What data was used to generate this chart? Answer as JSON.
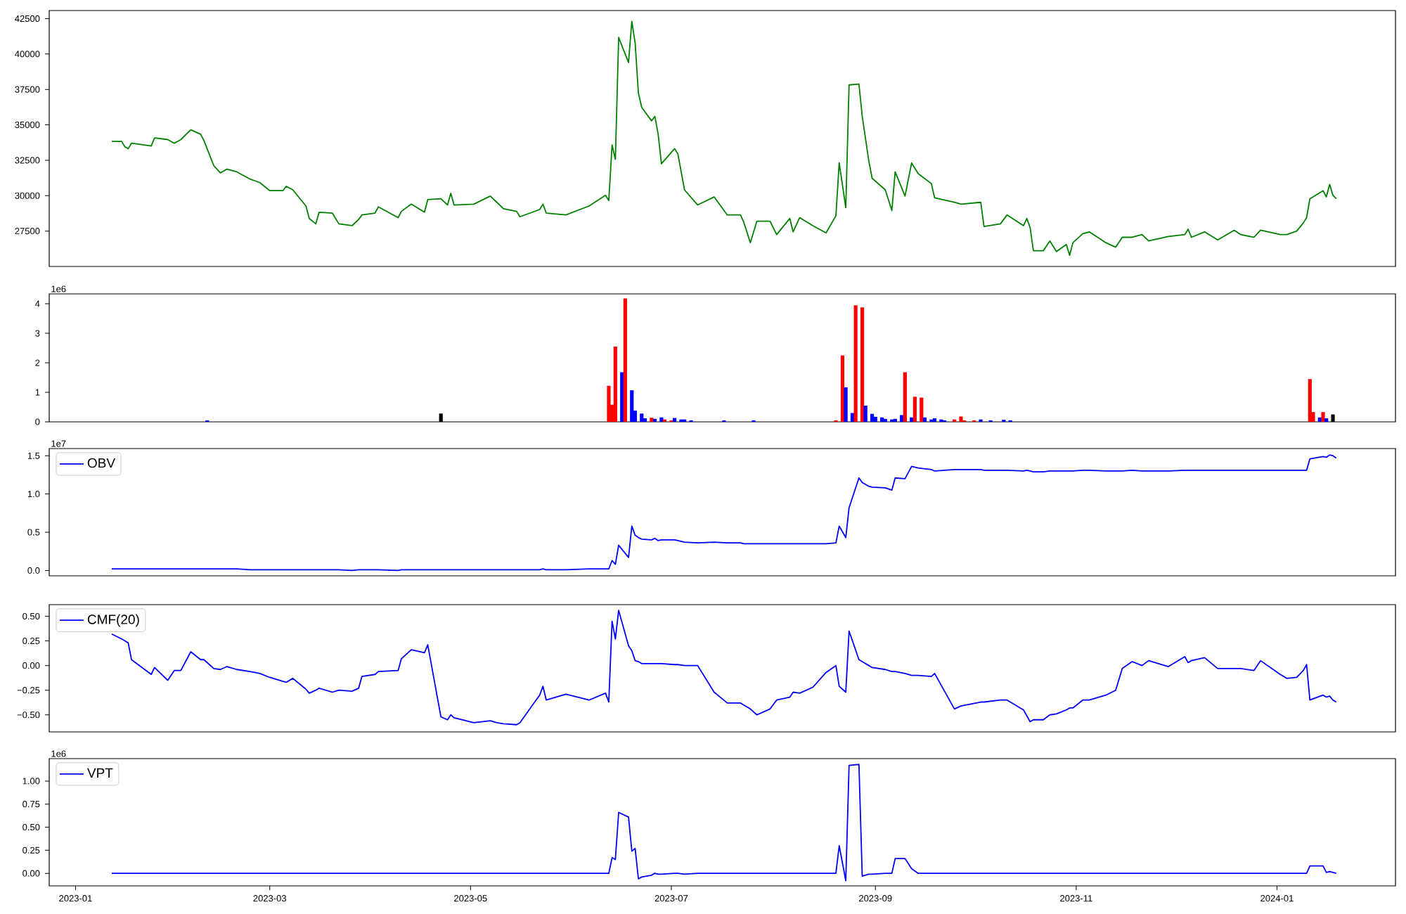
{
  "chart_data": [
    {
      "type": "line",
      "color": "#008000",
      "x": [
        "2023-01-12",
        "2023-01-15",
        "2023-01-16",
        "2023-01-17",
        "2023-01-18",
        "2023-01-24",
        "2023-01-25",
        "2023-01-29",
        "2023-01-31",
        "2023-02-02",
        "2023-02-05",
        "2023-02-08",
        "2023-02-09",
        "2023-02-12",
        "2023-02-14",
        "2023-02-16",
        "2023-02-19",
        "2023-02-23",
        "2023-02-26",
        "2023-03-01",
        "2023-03-05",
        "2023-03-06",
        "2023-03-08",
        "2023-03-12",
        "2023-03-13",
        "2023-03-15",
        "2023-03-16",
        "2023-03-20",
        "2023-03-22",
        "2023-03-26",
        "2023-03-28",
        "2023-03-29",
        "2023-04-02",
        "2023-04-03",
        "2023-04-09",
        "2023-04-10",
        "2023-04-13",
        "2023-04-17",
        "2023-04-18",
        "2023-04-22",
        "2023-04-24",
        "2023-04-25",
        "2023-04-26",
        "2023-05-02",
        "2023-05-07",
        "2023-05-09",
        "2023-05-11",
        "2023-05-15",
        "2023-05-16",
        "2023-05-22",
        "2023-05-23",
        "2023-05-24",
        "2023-05-30",
        "2023-06-06",
        "2023-06-11",
        "2023-06-12",
        "2023-06-13",
        "2023-06-14",
        "2023-06-15",
        "2023-06-18",
        "2023-06-19",
        "2023-06-20",
        "2023-06-21",
        "2023-06-22",
        "2023-06-25",
        "2023-06-26",
        "2023-06-27",
        "2023-06-28",
        "2023-07-02",
        "2023-07-03",
        "2023-07-05",
        "2023-07-09",
        "2023-07-14",
        "2023-07-18",
        "2023-07-22",
        "2023-07-23",
        "2023-07-25",
        "2023-07-27",
        "2023-07-31",
        "2023-08-02",
        "2023-08-06",
        "2023-08-07",
        "2023-08-09",
        "2023-08-13",
        "2023-08-17",
        "2023-08-20",
        "2023-08-21",
        "2023-08-23",
        "2023-08-24",
        "2023-08-27",
        "2023-08-28",
        "2023-08-30",
        "2023-08-31",
        "2023-09-04",
        "2023-09-06",
        "2023-09-07",
        "2023-09-10",
        "2023-09-12",
        "2023-09-14",
        "2023-09-18",
        "2023-09-19",
        "2023-09-25",
        "2023-09-27",
        "2023-10-03",
        "2023-10-04",
        "2023-10-09",
        "2023-10-11",
        "2023-10-16",
        "2023-10-17",
        "2023-10-18",
        "2023-10-19",
        "2023-10-22",
        "2023-10-24",
        "2023-10-26",
        "2023-10-29",
        "2023-10-30",
        "2023-10-31",
        "2023-11-03",
        "2023-11-05",
        "2023-11-10",
        "2023-11-13",
        "2023-11-15",
        "2023-11-18",
        "2023-11-21",
        "2023-11-23",
        "2023-11-29",
        "2023-12-04",
        "2023-12-05",
        "2023-12-06",
        "2023-12-10",
        "2023-12-14",
        "2023-12-19",
        "2023-12-21",
        "2023-12-25",
        "2023-12-27",
        "2024-01-02",
        "2024-01-04",
        "2024-01-07",
        "2024-01-09",
        "2024-01-10",
        "2024-01-11",
        "2024-01-15",
        "2024-01-16",
        "2024-01-17",
        "2024-01-18",
        "2024-01-19"
      ],
      "values": [
        33830,
        33830,
        33450,
        33320,
        33700,
        33510,
        34080,
        33960,
        33700,
        33960,
        34650,
        34340,
        33890,
        32120,
        31610,
        31870,
        31680,
        31170,
        30920,
        30350,
        30350,
        30660,
        30410,
        29270,
        28390,
        28010,
        28830,
        28770,
        28010,
        27880,
        28320,
        28640,
        28770,
        29210,
        28450,
        28890,
        29400,
        28830,
        29720,
        29780,
        29340,
        30160,
        29340,
        29400,
        29970,
        29530,
        29080,
        28890,
        28510,
        29020,
        29400,
        28770,
        28640,
        29270,
        30030,
        29650,
        33580,
        32560,
        41170,
        39400,
        42310,
        40790,
        37250,
        36230,
        35280,
        35600,
        34340,
        32250,
        33320,
        32940,
        30410,
        29340,
        29910,
        28640,
        28640,
        28130,
        26680,
        28200,
        28200,
        27250,
        28390,
        27440,
        28450,
        27880,
        27370,
        28580,
        32310,
        29150,
        37820,
        37880,
        35600,
        32440,
        31230,
        30410,
        28950,
        31680,
        29970,
        32310,
        31550,
        30850,
        29840,
        29530,
        29400,
        29530,
        27820,
        28010,
        28640,
        27880,
        28390,
        27750,
        26110,
        26110,
        26800,
        26050,
        26550,
        25790,
        26680,
        27310,
        27440,
        26680,
        26360,
        27060,
        27060,
        27250,
        26800,
        27120,
        27250,
        27630,
        27060,
        27440,
        26870,
        27560,
        27250,
        27060,
        27560,
        27250,
        27250,
        27500,
        28070,
        28450,
        29780,
        30350,
        29910,
        30790,
        30030,
        29780
      ],
      "xlim": [
        "2022-12-24",
        "2024-02-06"
      ],
      "ylim": [
        25000,
        43070
      ],
      "yticks": [
        27500,
        30000,
        32500,
        35000,
        37500,
        40000,
        42500
      ],
      "tick_labels": "y"
    },
    {
      "type": "bar",
      "x": [
        "2023-02-10",
        "2023-04-22",
        "2023-06-12",
        "2023-06-13",
        "2023-06-14",
        "2023-06-16",
        "2023-06-17",
        "2023-06-19",
        "2023-06-20",
        "2023-06-22",
        "2023-06-23",
        "2023-06-25",
        "2023-06-26",
        "2023-06-28",
        "2023-06-29",
        "2023-07-01",
        "2023-07-02",
        "2023-07-04",
        "2023-07-05",
        "2023-07-07",
        "2023-07-17",
        "2023-07-26",
        "2023-08-20",
        "2023-08-22",
        "2023-08-23",
        "2023-08-25",
        "2023-08-26",
        "2023-08-28",
        "2023-08-29",
        "2023-08-31",
        "2023-09-01",
        "2023-09-03",
        "2023-09-04",
        "2023-09-06",
        "2023-09-07",
        "2023-09-09",
        "2023-09-10",
        "2023-09-12",
        "2023-09-13",
        "2023-09-15",
        "2023-09-16",
        "2023-09-18",
        "2023-09-19",
        "2023-09-21",
        "2023-09-22",
        "2023-09-25",
        "2023-09-27",
        "2023-09-28",
        "2023-10-01",
        "2023-10-03",
        "2023-10-06",
        "2023-10-10",
        "2023-10-12",
        "2024-01-11",
        "2024-01-12",
        "2024-01-14",
        "2024-01-15",
        "2024-01-16",
        "2024-01-18"
      ],
      "values": [
        0.05,
        0.28,
        1.22,
        0.58,
        2.55,
        1.68,
        4.18,
        1.07,
        0.38,
        0.28,
        0.12,
        0.14,
        0.1,
        0.15,
        0.08,
        0.05,
        0.13,
        0.08,
        0.08,
        0.05,
        0.05,
        0.05,
        0.05,
        2.25,
        1.17,
        0.3,
        3.95,
        3.88,
        0.55,
        0.27,
        0.17,
        0.15,
        0.1,
        0.08,
        0.1,
        0.23,
        1.68,
        0.15,
        0.85,
        0.82,
        0.15,
        0.08,
        0.12,
        0.08,
        0.05,
        0.08,
        0.18,
        0.05,
        0.05,
        0.08,
        0.05,
        0.07,
        0.05,
        1.45,
        0.33,
        0.15,
        0.33,
        0.12,
        0.25
      ],
      "colors": [
        "#0000ff",
        "#000000",
        "#ff0000",
        "#ff0000",
        "#ff0000",
        "#0000ff",
        "#ff0000",
        "#0000ff",
        "#0000ff",
        "#0000ff",
        "#0000ff",
        "#ff0000",
        "#0000ff",
        "#0000ff",
        "#ff0000",
        "#ff0000",
        "#0000ff",
        "#0000ff",
        "#0000ff",
        "#0000ff",
        "#0000ff",
        "#0000ff",
        "#ff0000",
        "#ff0000",
        "#0000ff",
        "#0000ff",
        "#ff0000",
        "#ff0000",
        "#0000ff",
        "#0000ff",
        "#0000ff",
        "#0000ff",
        "#0000ff",
        "#0000ff",
        "#0000ff",
        "#0000ff",
        "#ff0000",
        "#0000ff",
        "#ff0000",
        "#ff0000",
        "#0000ff",
        "#0000ff",
        "#0000ff",
        "#0000ff",
        "#0000ff",
        "#ff0000",
        "#ff0000",
        "#ff0000",
        "#ff0000",
        "#0000ff",
        "#0000ff",
        "#0000ff",
        "#0000ff",
        "#ff0000",
        "#ff0000",
        "#0000ff",
        "#ff0000",
        "#0000ff",
        "#000000"
      ],
      "xlim": [
        "2022-12-24",
        "2024-02-06"
      ],
      "ylim": [
        0,
        4.336
      ],
      "yticks": [
        0,
        1,
        2,
        3,
        4
      ],
      "annotations": [
        "1e6"
      ],
      "tick_labels": "y"
    },
    {
      "type": "line",
      "legend": "top left",
      "x": [
        "2023-01-12",
        "2023-01-15",
        "2023-01-16",
        "2023-01-17",
        "2023-01-18",
        "2023-01-24",
        "2023-01-25",
        "2023-01-29",
        "2023-01-31",
        "2023-02-02",
        "2023-02-05",
        "2023-02-08",
        "2023-02-09",
        "2023-02-12",
        "2023-02-14",
        "2023-02-16",
        "2023-02-19",
        "2023-02-23",
        "2023-02-26",
        "2023-03-01",
        "2023-03-05",
        "2023-03-06",
        "2023-03-08",
        "2023-03-12",
        "2023-03-13",
        "2023-03-15",
        "2023-03-16",
        "2023-03-20",
        "2023-03-22",
        "2023-03-26",
        "2023-03-28",
        "2023-03-29",
        "2023-04-02",
        "2023-04-03",
        "2023-04-09",
        "2023-04-10",
        "2023-04-13",
        "2023-04-17",
        "2023-04-18",
        "2023-04-22",
        "2023-04-24",
        "2023-04-25",
        "2023-04-26",
        "2023-05-02",
        "2023-05-07",
        "2023-05-09",
        "2023-05-11",
        "2023-05-15",
        "2023-05-16",
        "2023-05-22",
        "2023-05-23",
        "2023-05-24",
        "2023-05-30",
        "2023-06-06",
        "2023-06-11",
        "2023-06-12",
        "2023-06-13",
        "2023-06-14",
        "2023-06-15",
        "2023-06-18",
        "2023-06-19",
        "2023-06-20",
        "2023-06-21",
        "2023-06-22",
        "2023-06-25",
        "2023-06-26",
        "2023-06-27",
        "2023-06-28",
        "2023-07-02",
        "2023-07-03",
        "2023-07-05",
        "2023-07-09",
        "2023-07-14",
        "2023-07-18",
        "2023-07-22",
        "2023-07-23",
        "2023-07-25",
        "2023-07-27",
        "2023-07-31",
        "2023-08-02",
        "2023-08-06",
        "2023-08-07",
        "2023-08-09",
        "2023-08-13",
        "2023-08-17",
        "2023-08-20",
        "2023-08-21",
        "2023-08-23",
        "2023-08-24",
        "2023-08-27",
        "2023-08-28",
        "2023-08-30",
        "2023-08-31",
        "2023-09-04",
        "2023-09-06",
        "2023-09-07",
        "2023-09-10",
        "2023-09-12",
        "2023-09-14",
        "2023-09-18",
        "2023-09-19",
        "2023-09-25",
        "2023-09-27",
        "2023-10-03",
        "2023-10-04",
        "2023-10-09",
        "2023-10-11",
        "2023-10-16",
        "2023-10-17",
        "2023-10-18",
        "2023-10-19",
        "2023-10-22",
        "2023-10-24",
        "2023-10-26",
        "2023-10-29",
        "2023-10-30",
        "2023-10-31",
        "2023-11-03",
        "2023-11-05",
        "2023-11-10",
        "2023-11-13",
        "2023-11-15",
        "2023-11-18",
        "2023-11-21",
        "2023-11-23",
        "2023-11-29",
        "2023-12-04",
        "2023-12-05",
        "2023-12-06",
        "2023-12-10",
        "2023-12-14",
        "2023-12-19",
        "2023-12-21",
        "2023-12-25",
        "2023-12-27",
        "2024-01-02",
        "2024-01-04",
        "2024-01-07",
        "2024-01-09",
        "2024-01-10",
        "2024-01-11",
        "2024-01-15",
        "2024-01-16",
        "2024-01-17",
        "2024-01-18",
        "2024-01-19"
      ],
      "series": [
        {
          "name": "OBV",
          "color": "#0000ff",
          "values": [
            0.02,
            0.02,
            0.02,
            0.02,
            0.02,
            0.02,
            0.02,
            0.02,
            0.02,
            0.02,
            0.02,
            0.02,
            0.02,
            0.02,
            0.02,
            0.02,
            0.02,
            0.01,
            0.01,
            0.01,
            0.01,
            0.01,
            0.01,
            0.01,
            0.01,
            0.01,
            0.01,
            0.01,
            0.01,
            0.0,
            0.01,
            0.01,
            0.01,
            0.01,
            0.0,
            0.01,
            0.01,
            0.01,
            0.01,
            0.01,
            0.01,
            0.01,
            0.01,
            0.01,
            0.01,
            0.01,
            0.01,
            0.01,
            0.01,
            0.01,
            0.02,
            0.01,
            0.01,
            0.02,
            0.02,
            0.02,
            0.13,
            0.08,
            0.33,
            0.17,
            0.58,
            0.46,
            0.43,
            0.41,
            0.4,
            0.42,
            0.39,
            0.4,
            0.4,
            0.39,
            0.37,
            0.36,
            0.37,
            0.36,
            0.36,
            0.35,
            0.35,
            0.35,
            0.35,
            0.35,
            0.35,
            0.35,
            0.35,
            0.35,
            0.35,
            0.36,
            0.58,
            0.43,
            0.82,
            1.21,
            1.15,
            1.1,
            1.09,
            1.08,
            1.05,
            1.21,
            1.2,
            1.36,
            1.34,
            1.32,
            1.3,
            1.32,
            1.32,
            1.32,
            1.31,
            1.31,
            1.31,
            1.3,
            1.31,
            1.3,
            1.29,
            1.29,
            1.3,
            1.3,
            1.3,
            1.3,
            1.3,
            1.31,
            1.31,
            1.3,
            1.3,
            1.3,
            1.31,
            1.3,
            1.3,
            1.3,
            1.31,
            1.31,
            1.31,
            1.31,
            1.31,
            1.31,
            1.31,
            1.31,
            1.31,
            1.31,
            1.31,
            1.31,
            1.31,
            1.31,
            1.46,
            1.49,
            1.48,
            1.51,
            1.5,
            1.47
          ]
        }
      ],
      "xlim": [
        "2022-12-24",
        "2024-02-06"
      ],
      "ylim": [
        -0.07,
        1.594
      ],
      "yticks": [
        {
          "value": 0,
          "label": "0.0"
        },
        {
          "value": 0.5,
          "label": "0.5"
        },
        {
          "value": 1,
          "label": "1.0"
        },
        {
          "value": 1.5,
          "label": "1.5"
        }
      ],
      "annotations": [
        "1e7"
      ],
      "tick_labels": "y"
    },
    {
      "type": "line",
      "legend": "top left",
      "x": [
        "2023-01-12",
        "2023-01-15",
        "2023-01-16",
        "2023-01-17",
        "2023-01-18",
        "2023-01-24",
        "2023-01-25",
        "2023-01-29",
        "2023-01-31",
        "2023-02-02",
        "2023-02-05",
        "2023-02-08",
        "2023-02-09",
        "2023-02-12",
        "2023-02-14",
        "2023-02-16",
        "2023-02-19",
        "2023-02-23",
        "2023-02-26",
        "2023-03-01",
        "2023-03-05",
        "2023-03-06",
        "2023-03-08",
        "2023-03-12",
        "2023-03-13",
        "2023-03-15",
        "2023-03-16",
        "2023-03-20",
        "2023-03-22",
        "2023-03-26",
        "2023-03-28",
        "2023-03-29",
        "2023-04-02",
        "2023-04-03",
        "2023-04-09",
        "2023-04-10",
        "2023-04-13",
        "2023-04-17",
        "2023-04-18",
        "2023-04-22",
        "2023-04-24",
        "2023-04-25",
        "2023-04-26",
        "2023-05-02",
        "2023-05-07",
        "2023-05-09",
        "2023-05-11",
        "2023-05-15",
        "2023-05-16",
        "2023-05-22",
        "2023-05-23",
        "2023-05-24",
        "2023-05-30",
        "2023-06-06",
        "2023-06-11",
        "2023-06-12",
        "2023-06-13",
        "2023-06-14",
        "2023-06-15",
        "2023-06-18",
        "2023-06-19",
        "2023-06-20",
        "2023-06-21",
        "2023-06-22",
        "2023-06-25",
        "2023-06-26",
        "2023-06-27",
        "2023-06-28",
        "2023-07-02",
        "2023-07-03",
        "2023-07-05",
        "2023-07-09",
        "2023-07-14",
        "2023-07-18",
        "2023-07-22",
        "2023-07-23",
        "2023-07-25",
        "2023-07-27",
        "2023-07-31",
        "2023-08-02",
        "2023-08-06",
        "2023-08-07",
        "2023-08-09",
        "2023-08-13",
        "2023-08-17",
        "2023-08-20",
        "2023-08-21",
        "2023-08-23",
        "2023-08-24",
        "2023-08-27",
        "2023-08-28",
        "2023-08-30",
        "2023-08-31",
        "2023-09-04",
        "2023-09-06",
        "2023-09-07",
        "2023-09-10",
        "2023-09-12",
        "2023-09-14",
        "2023-09-18",
        "2023-09-19",
        "2023-09-25",
        "2023-09-27",
        "2023-10-03",
        "2023-10-04",
        "2023-10-09",
        "2023-10-11",
        "2023-10-16",
        "2023-10-17",
        "2023-10-18",
        "2023-10-19",
        "2023-10-22",
        "2023-10-24",
        "2023-10-26",
        "2023-10-29",
        "2023-10-30",
        "2023-10-31",
        "2023-11-03",
        "2023-11-05",
        "2023-11-10",
        "2023-11-13",
        "2023-11-15",
        "2023-11-18",
        "2023-11-21",
        "2023-11-23",
        "2023-11-29",
        "2023-12-04",
        "2023-12-05",
        "2023-12-06",
        "2023-12-10",
        "2023-12-14",
        "2023-12-19",
        "2023-12-21",
        "2023-12-25",
        "2023-12-27",
        "2024-01-02",
        "2024-01-04",
        "2024-01-07",
        "2024-01-09",
        "2024-01-10",
        "2024-01-11",
        "2024-01-15",
        "2024-01-16",
        "2024-01-17",
        "2024-01-18",
        "2024-01-19"
      ],
      "series": [
        {
          "name": "CMF(20)",
          "color": "#0000ff",
          "values": [
            0.32,
            0.27,
            0.25,
            0.23,
            0.06,
            -0.09,
            -0.02,
            -0.15,
            -0.05,
            -0.05,
            0.14,
            0.06,
            0.06,
            -0.03,
            -0.04,
            -0.01,
            -0.04,
            -0.06,
            -0.08,
            -0.12,
            -0.16,
            -0.17,
            -0.13,
            -0.24,
            -0.28,
            -0.25,
            -0.23,
            -0.27,
            -0.25,
            -0.26,
            -0.23,
            -0.11,
            -0.09,
            -0.06,
            -0.05,
            0.07,
            0.16,
            0.13,
            0.21,
            -0.52,
            -0.55,
            -0.5,
            -0.53,
            -0.58,
            -0.56,
            -0.58,
            -0.59,
            -0.6,
            -0.58,
            -0.3,
            -0.21,
            -0.35,
            -0.29,
            -0.35,
            -0.28,
            -0.37,
            0.45,
            0.27,
            0.56,
            0.2,
            0.15,
            0.05,
            0.04,
            0.02,
            0.02,
            0.02,
            0.02,
            0.02,
            0.01,
            0.01,
            0.0,
            0.0,
            -0.27,
            -0.38,
            -0.38,
            -0.4,
            -0.44,
            -0.5,
            -0.44,
            -0.35,
            -0.32,
            -0.27,
            -0.28,
            -0.22,
            -0.07,
            0.0,
            -0.21,
            -0.27,
            0.35,
            0.06,
            0.04,
            0.0,
            -0.02,
            -0.04,
            -0.06,
            -0.06,
            -0.08,
            -0.1,
            -0.1,
            -0.11,
            -0.08,
            -0.44,
            -0.41,
            -0.37,
            -0.37,
            -0.35,
            -0.35,
            -0.45,
            -0.51,
            -0.57,
            -0.55,
            -0.55,
            -0.5,
            -0.49,
            -0.45,
            -0.43,
            -0.43,
            -0.35,
            -0.35,
            -0.3,
            -0.25,
            -0.03,
            0.04,
            0.0,
            0.05,
            -0.01,
            0.09,
            0.03,
            0.05,
            0.08,
            -0.03,
            -0.03,
            -0.03,
            -0.05,
            0.05,
            -0.09,
            -0.13,
            -0.12,
            -0.05,
            0.01,
            -0.35,
            -0.3,
            -0.32,
            -0.31,
            -0.35,
            -0.37
          ]
        }
      ],
      "xlim": [
        "2022-12-24",
        "2024-02-06"
      ],
      "ylim": [
        -0.673,
        0.618
      ],
      "yticks": [
        {
          "value": -0.5,
          "label": "−0.50"
        },
        {
          "value": -0.25,
          "label": "−0.25"
        },
        {
          "value": 0,
          "label": "0.00"
        },
        {
          "value": 0.25,
          "label": "0.25"
        },
        {
          "value": 0.5,
          "label": "0.50"
        }
      ],
      "tick_labels": "y"
    },
    {
      "type": "line",
      "legend": "top left",
      "x": [
        "2023-01-12",
        "2023-01-15",
        "2023-01-16",
        "2023-01-17",
        "2023-01-18",
        "2023-01-24",
        "2023-01-25",
        "2023-01-29",
        "2023-01-31",
        "2023-02-02",
        "2023-02-05",
        "2023-02-08",
        "2023-02-09",
        "2023-02-12",
        "2023-02-14",
        "2023-02-16",
        "2023-02-19",
        "2023-02-23",
        "2023-02-26",
        "2023-03-01",
        "2023-03-05",
        "2023-03-06",
        "2023-03-08",
        "2023-03-12",
        "2023-03-13",
        "2023-03-15",
        "2023-03-16",
        "2023-03-20",
        "2023-03-22",
        "2023-03-26",
        "2023-03-28",
        "2023-03-29",
        "2023-04-02",
        "2023-04-03",
        "2023-04-09",
        "2023-04-10",
        "2023-04-13",
        "2023-04-17",
        "2023-04-18",
        "2023-04-22",
        "2023-04-24",
        "2023-04-25",
        "2023-04-26",
        "2023-05-02",
        "2023-05-07",
        "2023-05-09",
        "2023-05-11",
        "2023-05-15",
        "2023-05-16",
        "2023-05-22",
        "2023-05-23",
        "2023-05-24",
        "2023-05-30",
        "2023-06-06",
        "2023-06-11",
        "2023-06-12",
        "2023-06-13",
        "2023-06-14",
        "2023-06-15",
        "2023-06-18",
        "2023-06-19",
        "2023-06-20",
        "2023-06-21",
        "2023-06-22",
        "2023-06-25",
        "2023-06-26",
        "2023-06-27",
        "2023-06-28",
        "2023-07-02",
        "2023-07-03",
        "2023-07-05",
        "2023-07-09",
        "2023-07-14",
        "2023-07-18",
        "2023-07-22",
        "2023-07-23",
        "2023-07-25",
        "2023-07-27",
        "2023-07-31",
        "2023-08-02",
        "2023-08-06",
        "2023-08-07",
        "2023-08-09",
        "2023-08-13",
        "2023-08-17",
        "2023-08-20",
        "2023-08-21",
        "2023-08-23",
        "2023-08-24",
        "2023-08-27",
        "2023-08-28",
        "2023-08-30",
        "2023-08-31",
        "2023-09-04",
        "2023-09-06",
        "2023-09-07",
        "2023-09-10",
        "2023-09-12",
        "2023-09-14",
        "2023-09-18",
        "2023-09-19",
        "2023-09-25",
        "2023-09-27",
        "2023-10-03",
        "2023-10-04",
        "2023-10-09",
        "2023-10-11",
        "2023-10-16",
        "2023-10-17",
        "2023-10-18",
        "2023-10-19",
        "2023-10-22",
        "2023-10-24",
        "2023-10-26",
        "2023-10-29",
        "2023-10-30",
        "2023-10-31",
        "2023-11-03",
        "2023-11-05",
        "2023-11-10",
        "2023-11-13",
        "2023-11-15",
        "2023-11-18",
        "2023-11-21",
        "2023-11-23",
        "2023-11-29",
        "2023-12-04",
        "2023-12-05",
        "2023-12-06",
        "2023-12-10",
        "2023-12-14",
        "2023-12-19",
        "2023-12-21",
        "2023-12-25",
        "2023-12-27",
        "2024-01-02",
        "2024-01-04",
        "2024-01-07",
        "2024-01-09",
        "2024-01-10",
        "2024-01-11",
        "2024-01-15",
        "2024-01-16",
        "2024-01-17",
        "2024-01-18",
        "2024-01-19"
      ],
      "series": [
        {
          "name": "VPT",
          "color": "#0000ff",
          "values": [
            0,
            0,
            0,
            0,
            0,
            0,
            0,
            0,
            0,
            0,
            0,
            0,
            0,
            0,
            0,
            0,
            0,
            0,
            0,
            0,
            0,
            0,
            0,
            0,
            0,
            0,
            0,
            0,
            0,
            0,
            0,
            0,
            0,
            0,
            0,
            0,
            0,
            0,
            0,
            0,
            0,
            0,
            0,
            0,
            0,
            0,
            0,
            0,
            0,
            0,
            0,
            0,
            0,
            0,
            0,
            0,
            0.17,
            0.15,
            0.66,
            0.61,
            0.24,
            0.27,
            -0.06,
            -0.04,
            -0.02,
            0,
            -0.01,
            -0.01,
            0,
            0,
            -0.01,
            0,
            0,
            0,
            0,
            0,
            0,
            0,
            0,
            0,
            0,
            0,
            0,
            0,
            0,
            0,
            0.3,
            -0.08,
            1.17,
            1.18,
            -0.03,
            -0.01,
            -0.01,
            0,
            0,
            0.16,
            0.16,
            0.05,
            0,
            0,
            0,
            0,
            0,
            0,
            0,
            0,
            0,
            0,
            0,
            0,
            0,
            0,
            0,
            0,
            0,
            0,
            0,
            0,
            0,
            0,
            0,
            0,
            0,
            0,
            0,
            0,
            0,
            0,
            0,
            0,
            0,
            0,
            0,
            0,
            0,
            0,
            0,
            0,
            0,
            0,
            0.08,
            0.08,
            0.01,
            0.02,
            0.01,
            0
          ]
        }
      ],
      "xlim": [
        "2022-12-24",
        "2024-02-06"
      ],
      "ylim": [
        -0.136,
        1.243
      ],
      "yticks": [
        {
          "value": 0,
          "label": "0.00"
        },
        {
          "value": 0.25,
          "label": "0.25"
        },
        {
          "value": 0.5,
          "label": "0.50"
        },
        {
          "value": 0.75,
          "label": "0.75"
        },
        {
          "value": 1,
          "label": "1.00"
        }
      ],
      "xticks": [
        {
          "value": "2023-01-01",
          "label": "2023-01"
        },
        {
          "value": "2023-03-01",
          "label": "2023-03"
        },
        {
          "value": "2023-05-01",
          "label": "2023-05"
        },
        {
          "value": "2023-07-01",
          "label": "2023-07"
        },
        {
          "value": "2023-09-01",
          "label": "2023-09"
        },
        {
          "value": "2023-11-01",
          "label": "2023-11"
        },
        {
          "value": "2024-01-01",
          "label": "2024-01"
        }
      ],
      "annotations": [
        "1e6"
      ]
    }
  ]
}
